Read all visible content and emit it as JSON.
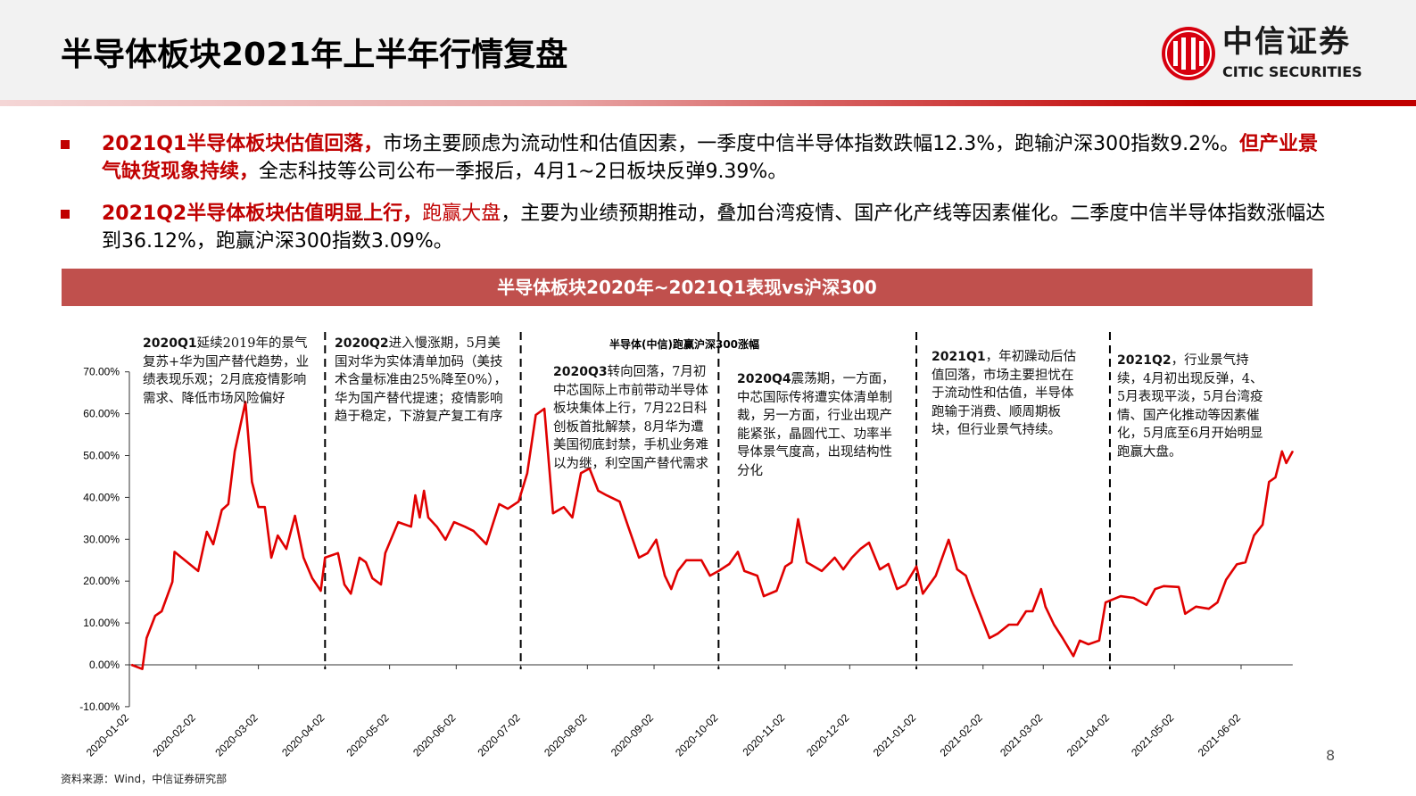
{
  "header": {
    "title": "半导体板块2021年上半年行情复盘",
    "logo_cn": "中信证券",
    "logo_en": "CITIC SECURITIES"
  },
  "bullets": [
    {
      "highlight1": "2021Q1半导体板块估值回落，",
      "text1": "市场主要顾虑为流动性和估值因素，一季度中信半导体指数跌幅12.3%，跑输沪深300指数9.2%。",
      "highlight2": "但产业景气缺货现象持续，",
      "text2": "全志科技等公司公布一季报后，4月1~2日板块反弹9.39%。"
    },
    {
      "highlight1": "2021Q2半导体板块估值明显上行，",
      "text1": "",
      "highlight2": "跑赢大盘",
      "text2": "，主要为业绩预期推动，叠加台湾疫情、国产化产线等因素催化。二季度中信半导体指数涨幅达到36.12%，跑赢沪深300指数3.09%。"
    }
  ],
  "banner": "半导体板块2020年~2021Q1表现vs沪深300",
  "annotations": [
    {
      "label": "2020Q1",
      "text": "延续2019年的景气复苏+华为国产替代趋势，业绩表现乐观；2月底疫情影响需求、降低市场风险偏好"
    },
    {
      "label": "2020Q2",
      "text": "进入慢涨期，5月美国对华为实体清单加码（美技术含量标准由25%降至0%），华为国产替代提速；疫情影响趋于稳定，下游复产复工有序"
    },
    {
      "label": "2020Q3",
      "text": "转向回落，7月初中芯国际上市前带动半导体板块集体上行，7月22日科创板首批解禁，8月华为遭美国彻底封禁，手机业务难以为继，利空国产替代需求"
    },
    {
      "label": "2020Q4",
      "text": "震荡期，一方面，中芯国际传将遭实体清单制裁，另一方面，行业出现产能紧张，晶圆代工、功率半导体景气度高，出现结构性分化"
    },
    {
      "label": "2021Q1",
      "text": "，年初躁动后估值回落，市场主要担忧在于流动性和估值，半导体跑输于消费、顺周期板块，但行业景气持续。"
    },
    {
      "label": "2021Q2",
      "text": "，行业景气持续，4月初出现反弹，4、5月表现平淡，5月台湾疫情、国产化推动等因素催化，5月底至6月开始明显跑赢大盘。"
    }
  ],
  "source": "资料来源：Wind，中信证券研究部",
  "page_number": "8",
  "colors": {
    "accent": "#c00000",
    "banner": "#c0504d",
    "line": "#e00000"
  },
  "chart_data": {
    "type": "line",
    "title": "半导体(中信)跑赢沪深300涨幅",
    "xlabel": "",
    "ylabel": "",
    "ylim": [
      -10,
      70
    ],
    "yticks": [
      "-10.00%",
      "0.00%",
      "10.00%",
      "20.00%",
      "30.00%",
      "40.00%",
      "50.00%",
      "60.00%",
      "70.00%"
    ],
    "xticks": [
      "2020-01-02",
      "2020-02-02",
      "2020-03-02",
      "2020-04-02",
      "2020-05-02",
      "2020-06-02",
      "2020-07-02",
      "2020-08-02",
      "2020-09-02",
      "2020-10-02",
      "2020-11-02",
      "2020-12-02",
      "2021-01-02",
      "2021-02-02",
      "2021-03-02",
      "2021-04-02",
      "2021-05-02",
      "2021-06-02"
    ],
    "quarter_dividers": [
      "2020-04-02",
      "2020-07-02",
      "2020-10-02",
      "2021-01-02",
      "2021-04-02"
    ],
    "grid": false,
    "series": [
      {
        "points": [
          [
            "2020-01-03",
            0
          ],
          [
            "2020-01-08",
            -1
          ],
          [
            "2020-01-10",
            6.4
          ],
          [
            "2020-01-14",
            11.7
          ],
          [
            "2020-01-17",
            12.8
          ],
          [
            "2020-01-22",
            19.8
          ],
          [
            "2020-01-23",
            27
          ],
          [
            "2020-02-03",
            22.4
          ],
          [
            "2020-02-07",
            31.8
          ],
          [
            "2020-02-10",
            28.8
          ],
          [
            "2020-02-14",
            37
          ],
          [
            "2020-02-17",
            38.4
          ],
          [
            "2020-02-20",
            51
          ],
          [
            "2020-02-25",
            62.8
          ],
          [
            "2020-02-28",
            43.7
          ],
          [
            "2020-03-02",
            37.7
          ],
          [
            "2020-03-05",
            37.7
          ],
          [
            "2020-03-08",
            25.6
          ],
          [
            "2020-03-11",
            30.9
          ],
          [
            "2020-03-15",
            27.7
          ],
          [
            "2020-03-19",
            35.6
          ],
          [
            "2020-03-23",
            25.6
          ],
          [
            "2020-03-27",
            20.7
          ],
          [
            "2020-03-31",
            17.7
          ],
          [
            "2020-04-02",
            25.6
          ],
          [
            "2020-04-08",
            26.7
          ],
          [
            "2020-04-11",
            19.2
          ],
          [
            "2020-04-14",
            17
          ],
          [
            "2020-04-18",
            25.6
          ],
          [
            "2020-04-21",
            24.5
          ],
          [
            "2020-04-24",
            20.7
          ],
          [
            "2020-04-28",
            19.2
          ],
          [
            "2020-04-30",
            26.7
          ],
          [
            "2020-05-06",
            34.1
          ],
          [
            "2020-05-12",
            33
          ],
          [
            "2020-05-14",
            40.5
          ],
          [
            "2020-05-16",
            35.2
          ],
          [
            "2020-05-18",
            41.6
          ],
          [
            "2020-05-20",
            35.2
          ],
          [
            "2020-05-24",
            33
          ],
          [
            "2020-05-28",
            29.9
          ],
          [
            "2020-06-01",
            34.1
          ],
          [
            "2020-06-06",
            33
          ],
          [
            "2020-06-10",
            32
          ],
          [
            "2020-06-16",
            28.8
          ],
          [
            "2020-06-22",
            38.4
          ],
          [
            "2020-06-26",
            37.3
          ],
          [
            "2020-07-01",
            39
          ],
          [
            "2020-07-05",
            45.8
          ],
          [
            "2020-07-09",
            59.7
          ],
          [
            "2020-07-13",
            61.2
          ],
          [
            "2020-07-17",
            36.2
          ],
          [
            "2020-07-22",
            37.7
          ],
          [
            "2020-07-26",
            35.2
          ],
          [
            "2020-07-30",
            45.8
          ],
          [
            "2020-08-03",
            46.9
          ],
          [
            "2020-08-07",
            41.6
          ],
          [
            "2020-08-11",
            40.5
          ],
          [
            "2020-08-17",
            39
          ],
          [
            "2020-08-21",
            33
          ],
          [
            "2020-08-26",
            25.6
          ],
          [
            "2020-08-30",
            26.7
          ],
          [
            "2020-09-03",
            29.9
          ],
          [
            "2020-09-07",
            21.3
          ],
          [
            "2020-09-10",
            18.1
          ],
          [
            "2020-09-13",
            22.4
          ],
          [
            "2020-09-17",
            25
          ],
          [
            "2020-09-24",
            25
          ],
          [
            "2020-09-28",
            21.3
          ],
          [
            "2020-10-02",
            22.4
          ],
          [
            "2020-10-07",
            24.1
          ],
          [
            "2020-10-11",
            27
          ],
          [
            "2020-10-14",
            22.4
          ],
          [
            "2020-10-20",
            21.3
          ],
          [
            "2020-10-23",
            16.4
          ],
          [
            "2020-10-29",
            17.7
          ],
          [
            "2020-11-02",
            23.5
          ],
          [
            "2020-11-05",
            24.5
          ],
          [
            "2020-11-08",
            34.8
          ],
          [
            "2020-11-12",
            24.5
          ],
          [
            "2020-11-19",
            22.4
          ],
          [
            "2020-11-25",
            25.6
          ],
          [
            "2020-11-29",
            22.8
          ],
          [
            "2020-12-03",
            25.6
          ],
          [
            "2020-12-07",
            27.7
          ],
          [
            "2020-12-11",
            29.2
          ],
          [
            "2020-12-16",
            22.8
          ],
          [
            "2020-12-20",
            24.1
          ],
          [
            "2020-12-24",
            18.1
          ],
          [
            "2020-12-28",
            19.2
          ],
          [
            "2021-01-02",
            23.5
          ],
          [
            "2021-01-05",
            17
          ],
          [
            "2021-01-11",
            21.3
          ],
          [
            "2021-01-17",
            29.9
          ],
          [
            "2021-01-21",
            22.8
          ],
          [
            "2021-01-25",
            21.3
          ],
          [
            "2021-01-28",
            17
          ],
          [
            "2021-02-01",
            11.7
          ],
          [
            "2021-02-05",
            6.4
          ],
          [
            "2021-02-09",
            7.5
          ],
          [
            "2021-02-14",
            9.6
          ],
          [
            "2021-02-18",
            9.6
          ],
          [
            "2021-02-22",
            12.8
          ],
          [
            "2021-02-25",
            12.8
          ],
          [
            "2021-03-01",
            18.1
          ],
          [
            "2021-03-03",
            13.9
          ],
          [
            "2021-03-07",
            9.6
          ],
          [
            "2021-03-11",
            6.4
          ],
          [
            "2021-03-16",
            2.1
          ],
          [
            "2021-03-19",
            5.8
          ],
          [
            "2021-03-23",
            4.9
          ],
          [
            "2021-03-28",
            5.8
          ],
          [
            "2021-03-31",
            14.9
          ],
          [
            "2021-04-07",
            16.4
          ],
          [
            "2021-04-13",
            16
          ],
          [
            "2021-04-19",
            14.3
          ],
          [
            "2021-04-23",
            18.1
          ],
          [
            "2021-04-27",
            18.8
          ],
          [
            "2021-05-04",
            18.6
          ],
          [
            "2021-05-07",
            12.2
          ],
          [
            "2021-05-12",
            13.9
          ],
          [
            "2021-05-18",
            13.4
          ],
          [
            "2021-05-22",
            14.9
          ],
          [
            "2021-05-26",
            20.3
          ],
          [
            "2021-05-31",
            24
          ],
          [
            "2021-06-04",
            24.5
          ],
          [
            "2021-06-08",
            30.9
          ],
          [
            "2021-06-12",
            33.5
          ],
          [
            "2021-06-15",
            43.7
          ],
          [
            "2021-06-18",
            44.8
          ],
          [
            "2021-06-21",
            51
          ],
          [
            "2021-06-23",
            48.2
          ],
          [
            "2021-06-26",
            51
          ]
        ]
      }
    ]
  }
}
